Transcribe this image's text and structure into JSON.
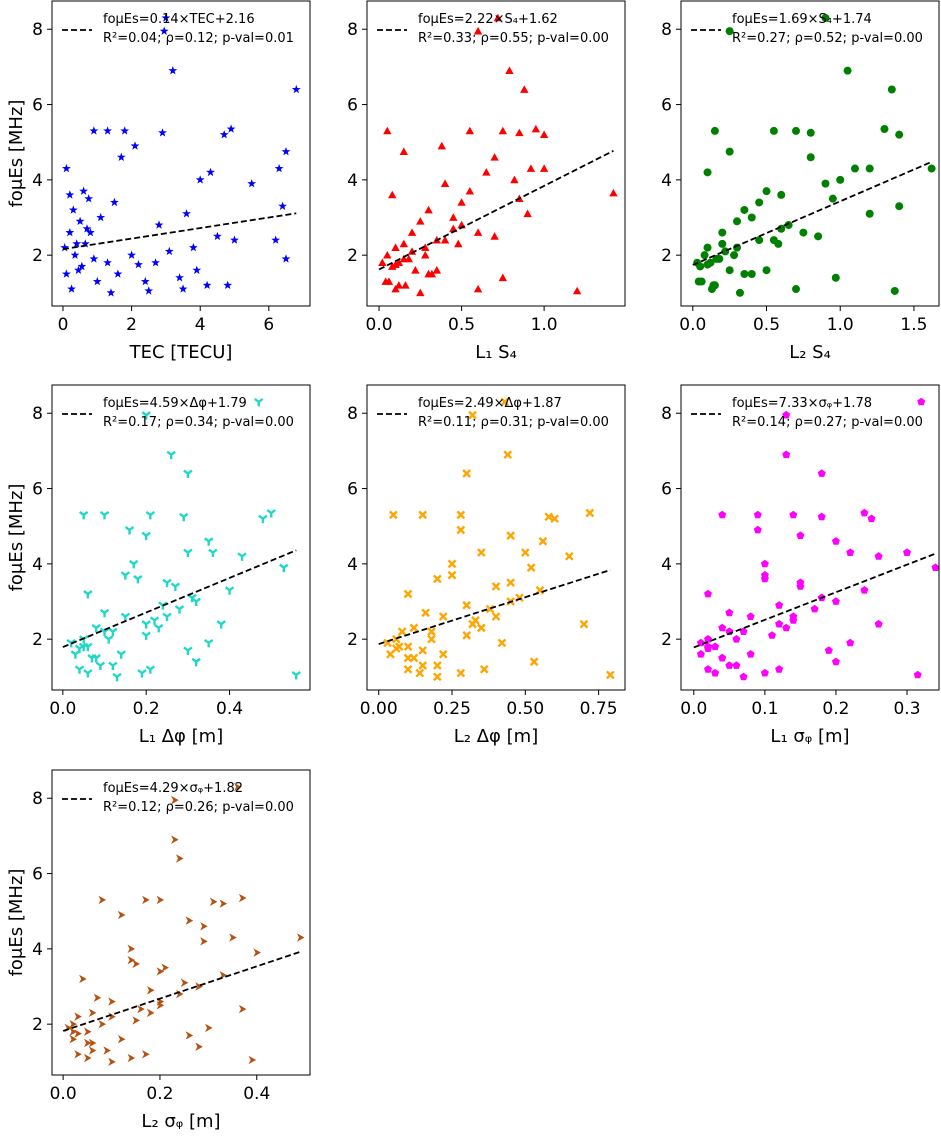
{
  "chart_data": [
    {
      "type": "scatter",
      "xlabel": "TEC [TECU]",
      "ylabel": "foμEs [MHz]",
      "color": "#0000ff",
      "marker": "star",
      "xlim": [
        -0.32,
        7.2
      ],
      "ylim": [
        0.65,
        8.75
      ],
      "xticks": [
        "0",
        "2",
        "4",
        "6"
      ],
      "xtick_values": [
        0,
        2,
        4,
        6
      ],
      "yticks": [
        "2",
        "4",
        "6",
        "8"
      ],
      "ytick_values": [
        2,
        4,
        6,
        8
      ],
      "legend": {
        "line1": "foμEs=0.14×TEC+2.16",
        "line2": "R²=0.04; ρ=0.12; p-val=0.01",
        "position": "top-left"
      },
      "fit": {
        "slope": 0.14,
        "intercept": 2.16,
        "x_range": [
          0,
          6.8
        ]
      },
      "x": [
        3.0,
        2.95,
        3.2,
        6.8,
        0.9,
        1.3,
        1.8,
        2.9,
        4.9,
        4.7,
        6.5,
        6.3,
        0.1,
        4.3,
        5.5,
        0.2,
        6.4,
        0.3,
        1.1,
        0.5,
        2.8,
        0.2,
        4.5,
        6.2,
        0.4,
        0.05,
        3.8,
        2.0,
        0.9,
        1.3,
        0.55,
        3.9,
        0.1,
        3.4,
        1.0,
        4.8,
        0.25,
        2.5,
        4.0,
        0.6,
        1.5,
        0.7,
        3.1,
        6.5,
        0.45,
        2.4,
        3.5,
        5.0,
        0.8,
        3.6,
        2.7,
        0.35,
        4.2,
        1.6,
        0.65,
        2.1,
        1.7,
        0.75,
        1.4,
        2.2
      ],
      "y": [
        8.3,
        7.95,
        6.9,
        6.4,
        5.3,
        5.3,
        5.3,
        5.25,
        5.35,
        5.2,
        4.75,
        4.3,
        4.3,
        4.2,
        3.9,
        3.6,
        3.3,
        3.2,
        3.0,
        2.9,
        2.8,
        2.6,
        2.5,
        2.4,
        2.3,
        2.2,
        2.2,
        2.0,
        1.9,
        1.8,
        1.7,
        1.6,
        1.5,
        1.4,
        1.3,
        1.2,
        1.1,
        1.05,
        4.0,
        3.7,
        3.4,
        2.7,
        2.1,
        1.9,
        1.6,
        1.3,
        1.1,
        2.4,
        2.6,
        3.1,
        1.8,
        2.0,
        1.2,
        1.5,
        2.3,
        4.9,
        4.6,
        3.5,
        1.0,
        1.75
      ]
    },
    {
      "type": "scatter",
      "xlabel": "L₁ S₄",
      "ylabel": "",
      "color": "#ff0000",
      "marker": "triangle-up",
      "xlim": [
        -0.073,
        1.49
      ],
      "ylim": [
        0.65,
        8.75
      ],
      "xticks": [
        "0.0",
        "0.5",
        "1.0"
      ],
      "xtick_values": [
        0,
        0.5,
        1.0
      ],
      "yticks": [
        "2",
        "4",
        "6",
        "8"
      ],
      "ytick_values": [
        2,
        4,
        6,
        8
      ],
      "legend": {
        "line1": "foμEs=2.22×S₄+1.62",
        "line2": "R²=0.33; ρ=0.55; p-val=0.00",
        "position": "top-left"
      },
      "fit": {
        "slope": 2.22,
        "intercept": 1.62,
        "x_range": [
          0,
          1.42
        ]
      },
      "x": [
        0.72,
        0.6,
        0.79,
        0.88,
        0.05,
        0.55,
        0.75,
        0.85,
        0.95,
        1.0,
        0.15,
        0.92,
        1.0,
        0.65,
        0.4,
        0.08,
        1.42,
        0.3,
        0.45,
        0.25,
        0.5,
        0.2,
        0.7,
        0.35,
        0.15,
        0.1,
        0.28,
        0.05,
        0.18,
        0.12,
        0.08,
        0.22,
        0.3,
        0.75,
        0.04,
        0.12,
        0.6,
        1.2,
        0.82,
        0.55,
        0.5,
        0.45,
        0.2,
        0.15,
        0.35,
        0.06,
        0.1,
        0.4,
        0.6,
        0.9,
        0.02,
        0.28,
        0.16,
        0.32,
        0.48,
        0.38,
        0.7,
        0.85,
        0.25,
        0.1
      ],
      "y": [
        8.3,
        7.95,
        6.9,
        6.4,
        5.3,
        5.3,
        5.3,
        5.25,
        5.35,
        5.2,
        4.75,
        4.3,
        4.3,
        4.2,
        3.9,
        3.6,
        3.65,
        3.2,
        3.0,
        2.9,
        2.8,
        2.6,
        2.5,
        2.4,
        2.3,
        2.2,
        2.2,
        2.0,
        1.9,
        1.8,
        1.7,
        1.6,
        1.5,
        1.4,
        1.3,
        1.2,
        1.1,
        1.05,
        4.0,
        3.7,
        3.4,
        2.7,
        2.1,
        1.9,
        1.6,
        1.3,
        1.1,
        2.4,
        2.6,
        3.1,
        1.8,
        2.0,
        1.2,
        1.5,
        2.3,
        4.9,
        4.6,
        3.5,
        1.0,
        1.75
      ]
    },
    {
      "type": "scatter",
      "xlabel": "L₂ S₄",
      "ylabel": "",
      "color": "#008000",
      "marker": "circle",
      "xlim": [
        -0.08,
        1.67
      ],
      "ylim": [
        0.65,
        8.75
      ],
      "xticks": [
        "0.0",
        "0.5",
        "1.0",
        "1.5"
      ],
      "xtick_values": [
        0,
        0.5,
        1.0,
        1.5
      ],
      "yticks": [
        "2",
        "4",
        "6",
        "8"
      ],
      "ytick_values": [
        2,
        4,
        6,
        8
      ],
      "legend": {
        "line1": "foμEs=1.69×S₄+1.74",
        "line2": "R²=0.27; ρ=0.52; p-val=0.00",
        "position": "top-left"
      },
      "fit": {
        "slope": 1.69,
        "intercept": 1.74,
        "x_range": [
          0,
          1.62
        ]
      },
      "x": [
        0.9,
        0.25,
        1.05,
        1.35,
        0.15,
        0.55,
        0.7,
        0.8,
        1.3,
        1.4,
        0.25,
        1.2,
        1.1,
        0.1,
        0.9,
        0.6,
        1.4,
        0.35,
        0.4,
        0.3,
        0.65,
        0.2,
        0.85,
        0.45,
        0.2,
        0.1,
        0.3,
        0.08,
        0.18,
        0.12,
        0.05,
        0.25,
        0.35,
        0.97,
        0.06,
        0.15,
        0.7,
        1.37,
        1.0,
        0.5,
        0.45,
        0.6,
        0.22,
        0.16,
        0.5,
        0.04,
        0.13,
        0.55,
        0.75,
        1.2,
        0.03,
        0.28,
        0.14,
        0.4,
        0.58,
        1.62,
        0.8,
        0.95,
        0.32,
        0.1
      ],
      "y": [
        8.3,
        7.95,
        6.9,
        6.4,
        5.3,
        5.3,
        5.3,
        5.25,
        5.35,
        5.2,
        4.75,
        4.3,
        4.3,
        4.2,
        3.9,
        3.6,
        3.3,
        3.2,
        3.0,
        2.9,
        2.8,
        2.6,
        2.5,
        2.4,
        2.3,
        2.2,
        2.2,
        2.0,
        1.9,
        1.8,
        1.7,
        1.6,
        1.5,
        1.4,
        1.3,
        1.2,
        1.1,
        1.05,
        4.0,
        3.7,
        3.4,
        2.7,
        2.1,
        1.9,
        1.6,
        1.3,
        1.1,
        2.4,
        2.6,
        3.1,
        1.8,
        2.0,
        1.2,
        1.5,
        2.3,
        4.3,
        4.6,
        3.5,
        1.0,
        1.75
      ]
    },
    {
      "type": "scatter",
      "xlabel": "L₁ Δφ [m]",
      "ylabel": "foμEs [MHz]",
      "color": "#20d8c8",
      "marker": "tri",
      "xlim": [
        -0.026,
        0.593
      ],
      "ylim": [
        0.65,
        8.75
      ],
      "xticks": [
        "0.0",
        "0.2",
        "0.4"
      ],
      "xtick_values": [
        0,
        0.2,
        0.4
      ],
      "yticks": [
        "2",
        "4",
        "6",
        "8"
      ],
      "ytick_values": [
        2,
        4,
        6,
        8
      ],
      "legend": {
        "line1": "foμEs=4.59×Δφ+1.79",
        "line2": "R²=0.17; ρ=0.34; p-val=0.00",
        "position": "top-left"
      },
      "fit": {
        "slope": 4.59,
        "intercept": 1.79,
        "x_range": [
          0,
          0.56
        ]
      },
      "x": [
        0.47,
        0.2,
        0.26,
        0.3,
        0.05,
        0.1,
        0.21,
        0.29,
        0.5,
        0.48,
        0.2,
        0.3,
        0.36,
        0.43,
        0.53,
        0.18,
        0.4,
        0.06,
        0.32,
        0.24,
        0.28,
        0.15,
        0.22,
        0.38,
        0.08,
        0.1,
        0.12,
        0.05,
        0.35,
        0.06,
        0.3,
        0.03,
        0.08,
        0.32,
        0.12,
        0.04,
        0.06,
        0.56,
        0.17,
        0.15,
        0.27,
        0.1,
        0.2,
        0.02,
        0.14,
        0.09,
        0.19,
        0.2,
        0.25,
        0.31,
        0.05,
        0.11,
        0.21,
        0.07,
        0.23,
        0.16,
        0.35,
        0.25,
        0.13,
        0.04
      ],
      "y": [
        8.3,
        7.95,
        6.9,
        6.4,
        5.3,
        5.3,
        5.3,
        5.25,
        5.35,
        5.2,
        4.75,
        4.3,
        4.3,
        4.2,
        3.9,
        3.6,
        3.3,
        3.2,
        3.0,
        2.9,
        2.8,
        2.6,
        2.5,
        2.4,
        2.3,
        2.2,
        2.2,
        2.0,
        1.9,
        1.8,
        1.7,
        1.6,
        1.5,
        1.4,
        1.3,
        1.2,
        1.1,
        1.05,
        4.0,
        3.7,
        3.4,
        2.7,
        2.1,
        1.9,
        1.6,
        1.3,
        1.1,
        2.4,
        2.6,
        3.1,
        1.8,
        2.0,
        1.2,
        1.5,
        2.3,
        4.9,
        4.6,
        3.5,
        1.0,
        1.75
      ]
    },
    {
      "type": "scatter",
      "xlabel": "L₂ Δφ [m]",
      "ylabel": "",
      "color": "#ffa500",
      "marker": "x",
      "xlim": [
        -0.04,
        0.84
      ],
      "ylim": [
        0.65,
        8.75
      ],
      "xticks": [
        "0.00",
        "0.25",
        "0.50",
        "0.75"
      ],
      "xtick_values": [
        0,
        0.25,
        0.5,
        0.75
      ],
      "yticks": [
        "2",
        "4",
        "6",
        "8"
      ],
      "ytick_values": [
        2,
        4,
        6,
        8
      ],
      "legend": {
        "line1": "foμEs=2.49×Δφ+1.87",
        "line2": "R²=0.11; ρ=0.31; p-val=0.00",
        "position": "top-left"
      },
      "fit": {
        "slope": 2.49,
        "intercept": 1.87,
        "x_range": [
          0,
          0.79
        ]
      },
      "x": [
        0.43,
        0.32,
        0.44,
        0.3,
        0.05,
        0.15,
        0.28,
        0.58,
        0.72,
        0.6,
        0.45,
        0.5,
        0.35,
        0.65,
        0.52,
        0.2,
        0.55,
        0.1,
        0.45,
        0.3,
        0.38,
        0.22,
        0.33,
        0.7,
        0.12,
        0.08,
        0.18,
        0.06,
        0.42,
        0.1,
        0.15,
        0.04,
        0.12,
        0.53,
        0.2,
        0.1,
        0.14,
        0.79,
        0.25,
        0.25,
        0.4,
        0.16,
        0.3,
        0.03,
        0.22,
        0.15,
        0.28,
        0.32,
        0.4,
        0.48,
        0.07,
        0.18,
        0.36,
        0.1,
        0.35,
        0.28,
        0.56,
        0.45,
        0.2,
        0.06
      ],
      "y": [
        8.3,
        7.95,
        6.9,
        6.4,
        5.3,
        5.3,
        5.3,
        5.25,
        5.35,
        5.2,
        4.75,
        4.3,
        4.3,
        4.2,
        3.9,
        3.6,
        3.3,
        3.2,
        3.0,
        2.9,
        2.8,
        2.6,
        2.5,
        2.4,
        2.3,
        2.2,
        2.2,
        2.0,
        1.9,
        1.8,
        1.7,
        1.6,
        1.5,
        1.4,
        1.3,
        1.2,
        1.1,
        1.05,
        4.0,
        3.7,
        3.4,
        2.7,
        2.1,
        1.9,
        1.6,
        1.3,
        1.1,
        2.4,
        2.6,
        3.1,
        1.8,
        2.0,
        1.2,
        1.5,
        2.3,
        4.9,
        4.6,
        3.5,
        1.0,
        1.75
      ]
    },
    {
      "type": "scatter",
      "xlabel": "L₁ σᵩ [m]",
      "ylabel": "",
      "color": "#ff00ff",
      "marker": "pentagon",
      "xlim": [
        -0.018,
        0.345
      ],
      "ylim": [
        0.65,
        8.75
      ],
      "xticks": [
        "0.0",
        "0.1",
        "0.2",
        "0.3"
      ],
      "xtick_values": [
        0,
        0.1,
        0.2,
        0.3
      ],
      "yticks": [
        "2",
        "4",
        "6",
        "8"
      ],
      "ytick_values": [
        2,
        4,
        6,
        8
      ],
      "legend": {
        "line1": "foμEs=7.33×σᵩ+1.78",
        "line2": "R²=0.14; ρ=0.27; p-val=0.00",
        "position": "top-left"
      },
      "fit": {
        "slope": 7.33,
        "intercept": 1.78,
        "x_range": [
          0,
          0.34
        ]
      },
      "x": [
        0.32,
        0.13,
        0.13,
        0.18,
        0.04,
        0.09,
        0.14,
        0.18,
        0.24,
        0.25,
        0.15,
        0.3,
        0.22,
        0.26,
        0.34,
        0.1,
        0.24,
        0.02,
        0.2,
        0.12,
        0.17,
        0.08,
        0.14,
        0.26,
        0.04,
        0.05,
        0.07,
        0.02,
        0.22,
        0.03,
        0.19,
        0.01,
        0.04,
        0.2,
        0.06,
        0.02,
        0.03,
        0.315,
        0.1,
        0.1,
        0.15,
        0.05,
        0.11,
        0.01,
        0.08,
        0.05,
        0.1,
        0.12,
        0.14,
        0.18,
        0.02,
        0.06,
        0.12,
        0.04,
        0.13,
        0.09,
        0.2,
        0.15,
        0.07,
        0.02
      ],
      "y": [
        8.3,
        7.95,
        6.9,
        6.4,
        5.3,
        5.3,
        5.3,
        5.25,
        5.35,
        5.2,
        4.75,
        4.3,
        4.3,
        4.2,
        3.9,
        3.6,
        3.3,
        3.2,
        3.0,
        2.9,
        2.8,
        2.6,
        2.5,
        2.4,
        2.3,
        2.2,
        2.2,
        2.0,
        1.9,
        1.8,
        1.7,
        1.6,
        1.5,
        1.4,
        1.3,
        1.2,
        1.1,
        1.05,
        4.0,
        3.7,
        3.4,
        2.7,
        2.1,
        1.9,
        1.6,
        1.3,
        1.1,
        2.4,
        2.6,
        3.1,
        1.8,
        2.0,
        1.2,
        1.5,
        2.3,
        4.9,
        4.6,
        3.5,
        1.0,
        1.75
      ]
    },
    {
      "type": "scatter",
      "xlabel": "L₂ σᵩ [m]",
      "ylabel": "foμEs [MHz]",
      "color": "#b5520f",
      "marker": "triangle-right",
      "xlim": [
        -0.023,
        0.51
      ],
      "ylim": [
        0.65,
        8.75
      ],
      "xticks": [
        "0.0",
        "0.2",
        "0.4"
      ],
      "xtick_values": [
        0,
        0.2,
        0.4
      ],
      "yticks": [
        "2",
        "4",
        "6",
        "8"
      ],
      "ytick_values": [
        2,
        4,
        6,
        8
      ],
      "legend": {
        "line1": "foμEs=4.29×σᵩ+1.82",
        "line2": "R²=0.12; ρ=0.26; p-val=0.00",
        "position": "top-left"
      },
      "fit": {
        "slope": 4.29,
        "intercept": 1.82,
        "x_range": [
          0,
          0.49
        ]
      },
      "x": [
        0.36,
        0.23,
        0.23,
        0.24,
        0.08,
        0.17,
        0.2,
        0.31,
        0.37,
        0.33,
        0.26,
        0.49,
        0.35,
        0.29,
        0.4,
        0.15,
        0.33,
        0.04,
        0.28,
        0.18,
        0.24,
        0.1,
        0.2,
        0.37,
        0.06,
        0.03,
        0.1,
        0.02,
        0.3,
        0.05,
        0.26,
        0.02,
        0.06,
        0.28,
        0.09,
        0.03,
        0.05,
        0.39,
        0.14,
        0.14,
        0.2,
        0.07,
        0.15,
        0.01,
        0.12,
        0.06,
        0.14,
        0.16,
        0.2,
        0.25,
        0.02,
        0.08,
        0.17,
        0.05,
        0.18,
        0.12,
        0.29,
        0.21,
        0.1,
        0.03
      ],
      "y": [
        8.3,
        7.95,
        6.9,
        6.4,
        5.3,
        5.3,
        5.3,
        5.25,
        5.35,
        5.2,
        4.75,
        4.3,
        4.3,
        4.2,
        3.9,
        3.6,
        3.3,
        3.2,
        3.0,
        2.9,
        2.8,
        2.6,
        2.5,
        2.4,
        2.3,
        2.2,
        2.2,
        2.0,
        1.9,
        1.8,
        1.7,
        1.6,
        1.5,
        1.4,
        1.3,
        1.2,
        1.1,
        1.05,
        4.0,
        3.7,
        3.4,
        2.7,
        2.1,
        1.9,
        1.6,
        1.3,
        1.1,
        2.4,
        2.6,
        3.1,
        1.8,
        2.0,
        1.2,
        1.5,
        2.3,
        4.9,
        4.6,
        3.5,
        1.0,
        1.75
      ]
    }
  ]
}
